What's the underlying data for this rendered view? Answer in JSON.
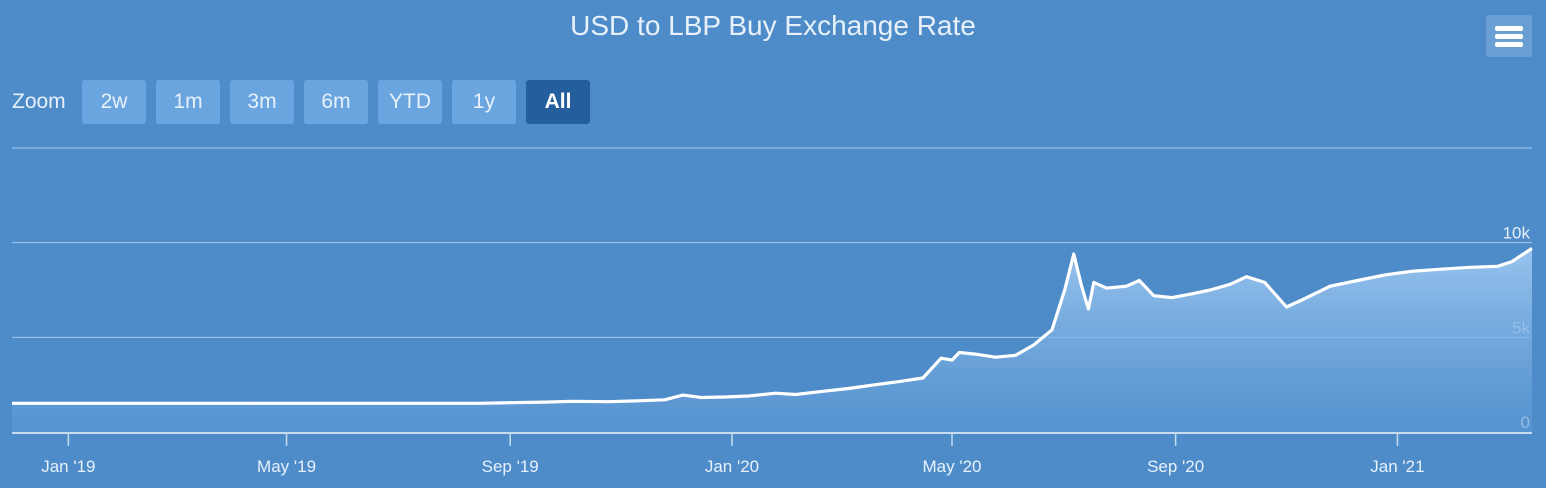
{
  "chart": {
    "title": "USD to LBP Buy Exchange Rate",
    "zoom_label": "Zoom",
    "zoom_buttons": [
      "2w",
      "1m",
      "3m",
      "6m",
      "YTD",
      "1y",
      "All"
    ],
    "active_zoom": "All",
    "menu_icon": "hamburger-menu-icon"
  },
  "chart_data": {
    "type": "area",
    "title": "USD to LBP Buy Exchange Rate",
    "xlabel": "",
    "ylabel": "",
    "y_ticks": [
      {
        "value": 0,
        "label": "0"
      },
      {
        "value": 5000,
        "label": "5k"
      },
      {
        "value": 10000,
        "label": "10k"
      }
    ],
    "ylim": [
      0,
      15000
    ],
    "x_ticks": [
      {
        "date": "2019-01-01",
        "label": "Jan '19"
      },
      {
        "date": "2019-05-01",
        "label": "May '19"
      },
      {
        "date": "2019-09-01",
        "label": "Sep '19"
      },
      {
        "date": "2020-01-01",
        "label": "Jan '20"
      },
      {
        "date": "2020-05-01",
        "label": "May '20"
      },
      {
        "date": "2020-09-01",
        "label": "Sep '20"
      },
      {
        "date": "2021-01-01",
        "label": "Jan '21"
      }
    ],
    "xlim": [
      "2018-12-01",
      "2021-03-16"
    ],
    "grid": true,
    "series_color": "#ffffff",
    "fill_color": "#8fbdeb",
    "series": [
      {
        "name": "",
        "points": [
          [
            "2018-12-01",
            1515
          ],
          [
            "2019-03-01",
            1515
          ],
          [
            "2019-06-01",
            1515
          ],
          [
            "2019-08-15",
            1515
          ],
          [
            "2019-09-01",
            1550
          ],
          [
            "2019-09-20",
            1580
          ],
          [
            "2019-10-05",
            1620
          ],
          [
            "2019-10-25",
            1600
          ],
          [
            "2019-11-10",
            1650
          ],
          [
            "2019-11-25",
            1700
          ],
          [
            "2019-12-05",
            1950
          ],
          [
            "2019-12-15",
            1820
          ],
          [
            "2019-12-28",
            1850
          ],
          [
            "2020-01-10",
            1900
          ],
          [
            "2020-01-25",
            2050
          ],
          [
            "2020-02-05",
            1980
          ],
          [
            "2020-02-20",
            2150
          ],
          [
            "2020-03-05",
            2300
          ],
          [
            "2020-03-20",
            2500
          ],
          [
            "2020-04-01",
            2650
          ],
          [
            "2020-04-15",
            2850
          ],
          [
            "2020-04-25",
            3900
          ],
          [
            "2020-05-01",
            3800
          ],
          [
            "2020-05-05",
            4200
          ],
          [
            "2020-05-15",
            4100
          ],
          [
            "2020-05-25",
            3950
          ],
          [
            "2020-06-05",
            4050
          ],
          [
            "2020-06-15",
            4600
          ],
          [
            "2020-06-25",
            5400
          ],
          [
            "2020-07-02",
            7500
          ],
          [
            "2020-07-07",
            9400
          ],
          [
            "2020-07-11",
            7800
          ],
          [
            "2020-07-15",
            6500
          ],
          [
            "2020-07-18",
            7900
          ],
          [
            "2020-07-25",
            7600
          ],
          [
            "2020-08-05",
            7700
          ],
          [
            "2020-08-12",
            8000
          ],
          [
            "2020-08-20",
            7200
          ],
          [
            "2020-08-30",
            7100
          ],
          [
            "2020-09-10",
            7300
          ],
          [
            "2020-09-20",
            7500
          ],
          [
            "2020-10-01",
            7800
          ],
          [
            "2020-10-10",
            8200
          ],
          [
            "2020-10-20",
            7900
          ],
          [
            "2020-11-01",
            6600
          ],
          [
            "2020-11-10",
            7000
          ],
          [
            "2020-11-25",
            7700
          ],
          [
            "2020-12-10",
            8000
          ],
          [
            "2020-12-25",
            8300
          ],
          [
            "2021-01-10",
            8500
          ],
          [
            "2021-01-25",
            8600
          ],
          [
            "2021-02-10",
            8700
          ],
          [
            "2021-02-25",
            8750
          ],
          [
            "2021-03-05",
            9000
          ],
          [
            "2021-03-16",
            9700
          ]
        ]
      }
    ]
  }
}
